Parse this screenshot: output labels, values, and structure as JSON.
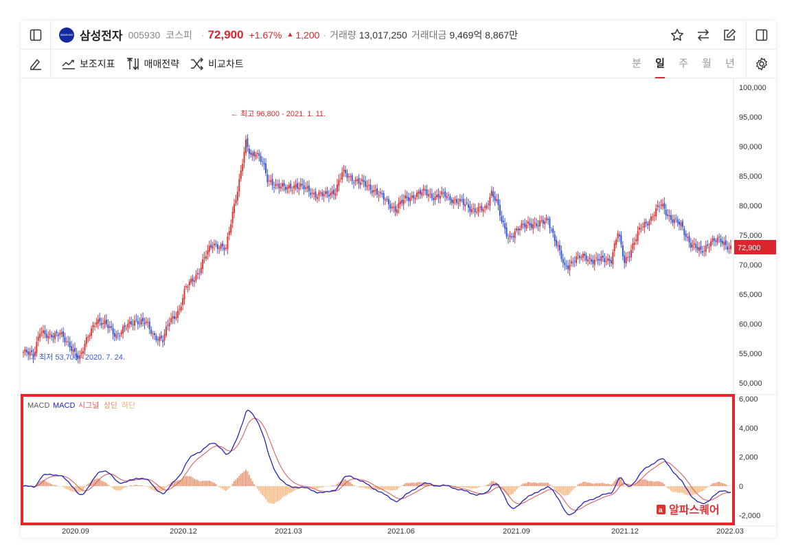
{
  "header": {
    "logo_text": "SAMSUNG",
    "name": "삼성전자",
    "code": "005930",
    "market": "코스피",
    "price": "72,900",
    "change_pct": "+1.67%",
    "change_abs": "1,200",
    "volume_label": "거래량",
    "volume": "13,017,250",
    "amount_label": "거래대금",
    "amount": "9,469억 8,867만"
  },
  "toolbar": {
    "indicator_label": "보조지표",
    "strategy_label": "매매전략",
    "compare_label": "비교차트",
    "periods": [
      "분",
      "일",
      "주",
      "월",
      "년"
    ],
    "active_period": "일"
  },
  "chart_data": [
    {
      "type": "candlestick",
      "x_ticks": [
        "2020.09",
        "2020.12",
        "2021.03",
        "2021.06",
        "2021.09",
        "2021.12",
        "2022.03"
      ],
      "y_ticks": [
        "100,000",
        "95,000",
        "90,000",
        "85,000",
        "80,000",
        "75,000",
        "70,000",
        "65,000",
        "60,000",
        "55,000",
        "50,000"
      ],
      "ylim": [
        48000,
        101500
      ],
      "current_price_label": "72,900",
      "high_annotation": "← 최고 96,800 - 2021. 1. 11.",
      "low_annotation": "← 최저 53,700 - 2020. 7. 24.",
      "anchors": [
        [
          0,
          55200
        ],
        [
          6,
          54600
        ],
        [
          10,
          59000
        ],
        [
          15,
          57500
        ],
        [
          22,
          58800
        ],
        [
          26,
          56600
        ],
        [
          30,
          55400
        ],
        [
          34,
          54500
        ],
        [
          38,
          57000
        ],
        [
          44,
          60800
        ],
        [
          50,
          59700
        ],
        [
          56,
          58100
        ],
        [
          62,
          59400
        ],
        [
          68,
          60700
        ],
        [
          74,
          60000
        ],
        [
          78,
          58200
        ],
        [
          84,
          57200
        ],
        [
          88,
          60400
        ],
        [
          94,
          62400
        ],
        [
          98,
          66100
        ],
        [
          102,
          67600
        ],
        [
          106,
          68900
        ],
        [
          110,
          71600
        ],
        [
          114,
          73700
        ],
        [
          118,
          73100
        ],
        [
          122,
          72500
        ],
        [
          126,
          78900
        ],
        [
          130,
          84100
        ],
        [
          134,
          90400
        ],
        [
          137,
          88500
        ],
        [
          140,
          89200
        ],
        [
          144,
          87200
        ],
        [
          147,
          84200
        ],
        [
          152,
          83600
        ],
        [
          158,
          82800
        ],
        [
          164,
          83500
        ],
        [
          170,
          82800
        ],
        [
          176,
          81900
        ],
        [
          182,
          81700
        ],
        [
          188,
          82600
        ],
        [
          192,
          85500
        ],
        [
          198,
          84600
        ],
        [
          205,
          83600
        ],
        [
          212,
          82500
        ],
        [
          218,
          80900
        ],
        [
          224,
          79400
        ],
        [
          230,
          81100
        ],
        [
          236,
          81800
        ],
        [
          242,
          82300
        ],
        [
          248,
          81400
        ],
        [
          254,
          81800
        ],
        [
          260,
          80800
        ],
        [
          266,
          80200
        ],
        [
          272,
          79200
        ],
        [
          278,
          79300
        ],
        [
          282,
          82400
        ],
        [
          285,
          80700
        ],
        [
          288,
          77200
        ],
        [
          292,
          74600
        ],
        [
          298,
          75900
        ],
        [
          304,
          77100
        ],
        [
          310,
          76600
        ],
        [
          316,
          77800
        ],
        [
          320,
          74200
        ],
        [
          326,
          69500
        ],
        [
          332,
          70900
        ],
        [
          338,
          71400
        ],
        [
          344,
          70600
        ],
        [
          350,
          70900
        ],
        [
          354,
          70900
        ],
        [
          358,
          75400
        ],
        [
          362,
          70500
        ],
        [
          366,
          72600
        ],
        [
          372,
          76300
        ],
        [
          378,
          77900
        ],
        [
          384,
          80200
        ],
        [
          390,
          77800
        ],
        [
          396,
          76600
        ],
        [
          402,
          73500
        ],
        [
          408,
          72100
        ],
        [
          414,
          74000
        ],
        [
          420,
          74000
        ],
        [
          426,
          72900
        ]
      ],
      "up_color": "#e03030",
      "down_color": "#3355dd"
    },
    {
      "type": "macd",
      "legend": [
        "MACD",
        "MACD",
        "시그널",
        "상단",
        "하단"
      ],
      "y_ticks": [
        "6,000",
        "4,000",
        "2,000",
        "0",
        "-2,000"
      ],
      "ylim": [
        -2500,
        6000
      ],
      "macd_color": "#2222bb",
      "signal_color": "#d96060",
      "hist_up_color": "#e8a080",
      "hist_down_color": "#f8c090",
      "watermark": "알파스퀘어"
    }
  ]
}
